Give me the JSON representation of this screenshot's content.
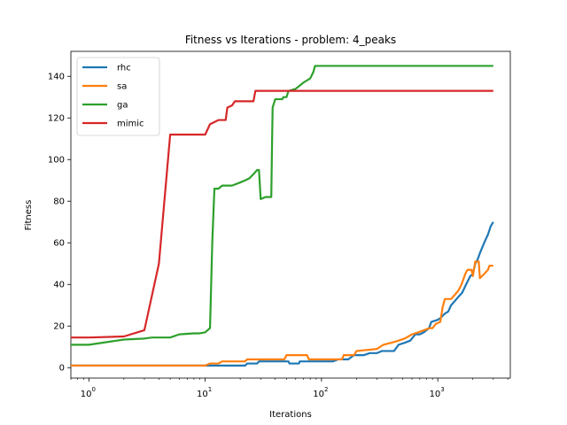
{
  "chart_data": {
    "type": "line",
    "title": "Fitness vs Iterations - problem: 4_peaks",
    "xlabel": "Iterations",
    "ylabel": "Fitness",
    "xscale": "log",
    "xlim": [
      0.7,
      4200
    ],
    "ylim": [
      -5,
      152
    ],
    "grid": false,
    "legend_position": "top-left",
    "x_ticks": [
      {
        "value": 1,
        "base": "10",
        "exp": "0"
      },
      {
        "value": 10,
        "base": "10",
        "exp": "1"
      },
      {
        "value": 100,
        "base": "10",
        "exp": "2"
      },
      {
        "value": 1000,
        "base": "10",
        "exp": "3"
      }
    ],
    "y_ticks": [
      {
        "value": 0,
        "label": "0"
      },
      {
        "value": 20,
        "label": "20"
      },
      {
        "value": 40,
        "label": "40"
      },
      {
        "value": 60,
        "label": "60"
      },
      {
        "value": 80,
        "label": "80"
      },
      {
        "value": 100,
        "label": "100"
      },
      {
        "value": 120,
        "label": "120"
      },
      {
        "value": 140,
        "label": "140"
      }
    ],
    "series": [
      {
        "name": "rhc",
        "color": "#1f77b4",
        "points": [
          [
            0.7,
            1
          ],
          [
            22,
            1
          ],
          [
            23,
            2
          ],
          [
            28,
            2
          ],
          [
            29,
            3
          ],
          [
            52,
            3
          ],
          [
            53,
            2
          ],
          [
            64,
            2
          ],
          [
            65,
            3
          ],
          [
            125,
            3
          ],
          [
            140,
            4
          ],
          [
            170,
            4
          ],
          [
            190,
            6
          ],
          [
            230,
            6
          ],
          [
            260,
            7
          ],
          [
            300,
            7
          ],
          [
            330,
            8
          ],
          [
            420,
            8
          ],
          [
            460,
            11
          ],
          [
            520,
            12
          ],
          [
            580,
            13
          ],
          [
            640,
            16
          ],
          [
            700,
            16
          ],
          [
            760,
            17
          ],
          [
            840,
            19
          ],
          [
            880,
            22
          ],
          [
            1000,
            23
          ],
          [
            1060,
            24
          ],
          [
            1150,
            26
          ],
          [
            1230,
            27
          ],
          [
            1300,
            30
          ],
          [
            1400,
            32
          ],
          [
            1500,
            34
          ],
          [
            1620,
            36
          ],
          [
            1750,
            40
          ],
          [
            1900,
            44
          ],
          [
            2000,
            45
          ],
          [
            2100,
            50
          ],
          [
            2200,
            52
          ],
          [
            2300,
            55
          ],
          [
            2420,
            58
          ],
          [
            2550,
            61
          ],
          [
            2700,
            64
          ],
          [
            2850,
            68
          ],
          [
            3000,
            70
          ]
        ]
      },
      {
        "name": "sa",
        "color": "#ff7f0e",
        "points": [
          [
            0.7,
            1
          ],
          [
            10,
            1
          ],
          [
            11,
            2
          ],
          [
            13,
            2
          ],
          [
            14,
            3
          ],
          [
            22,
            3
          ],
          [
            23,
            4
          ],
          [
            48,
            4
          ],
          [
            50,
            6
          ],
          [
            75,
            6
          ],
          [
            78,
            4
          ],
          [
            100,
            4
          ],
          [
            150,
            4
          ],
          [
            155,
            6
          ],
          [
            190,
            6
          ],
          [
            200,
            8
          ],
          [
            300,
            9
          ],
          [
            340,
            11
          ],
          [
            400,
            12
          ],
          [
            460,
            13
          ],
          [
            520,
            14
          ],
          [
            600,
            16
          ],
          [
            680,
            17
          ],
          [
            760,
            18
          ],
          [
            850,
            19
          ],
          [
            900,
            19
          ],
          [
            960,
            21
          ],
          [
            1050,
            22
          ],
          [
            1100,
            29
          ],
          [
            1150,
            33
          ],
          [
            1300,
            33
          ],
          [
            1400,
            35
          ],
          [
            1500,
            37
          ],
          [
            1600,
            40
          ],
          [
            1720,
            45
          ],
          [
            1800,
            47
          ],
          [
            1950,
            47
          ],
          [
            2000,
            44
          ],
          [
            2100,
            51
          ],
          [
            2250,
            51
          ],
          [
            2300,
            43
          ],
          [
            2500,
            45
          ],
          [
            2700,
            47
          ],
          [
            2780,
            49
          ],
          [
            3000,
            49
          ]
        ]
      },
      {
        "name": "ga",
        "color": "#2ca02c",
        "points": [
          [
            0.7,
            11
          ],
          [
            1,
            11
          ],
          [
            2,
            13.5
          ],
          [
            3,
            14
          ],
          [
            3.5,
            14.5
          ],
          [
            5,
            14.5
          ],
          [
            6,
            16
          ],
          [
            8,
            16.5
          ],
          [
            9,
            16.5
          ],
          [
            10,
            17
          ],
          [
            11,
            19
          ],
          [
            11.5,
            60
          ],
          [
            12,
            86
          ],
          [
            13,
            86
          ],
          [
            14,
            87.5
          ],
          [
            17,
            87.5
          ],
          [
            20,
            89
          ],
          [
            22,
            90
          ],
          [
            24,
            91
          ],
          [
            26,
            93
          ],
          [
            28,
            95
          ],
          [
            29,
            95
          ],
          [
            30,
            81
          ],
          [
            33,
            82
          ],
          [
            36,
            82
          ],
          [
            37,
            82
          ],
          [
            37.5,
            105
          ],
          [
            38,
            125
          ],
          [
            40,
            129
          ],
          [
            46,
            129
          ],
          [
            47,
            130
          ],
          [
            50,
            130
          ],
          [
            52,
            133
          ],
          [
            60,
            134
          ],
          [
            70,
            137
          ],
          [
            80,
            139
          ],
          [
            85,
            142
          ],
          [
            88,
            145
          ],
          [
            3000,
            145
          ]
        ]
      },
      {
        "name": "mimic",
        "color": "#d62728",
        "points": [
          [
            0.7,
            14.5
          ],
          [
            1,
            14.5
          ],
          [
            2,
            15
          ],
          [
            3,
            18
          ],
          [
            4,
            50
          ],
          [
            5,
            112
          ],
          [
            10,
            112
          ],
          [
            11,
            117
          ],
          [
            12,
            118
          ],
          [
            13,
            119
          ],
          [
            15,
            119
          ],
          [
            15.5,
            125
          ],
          [
            17,
            126
          ],
          [
            18,
            128
          ],
          [
            26,
            128
          ],
          [
            27,
            133
          ],
          [
            3000,
            133
          ]
        ]
      }
    ]
  }
}
